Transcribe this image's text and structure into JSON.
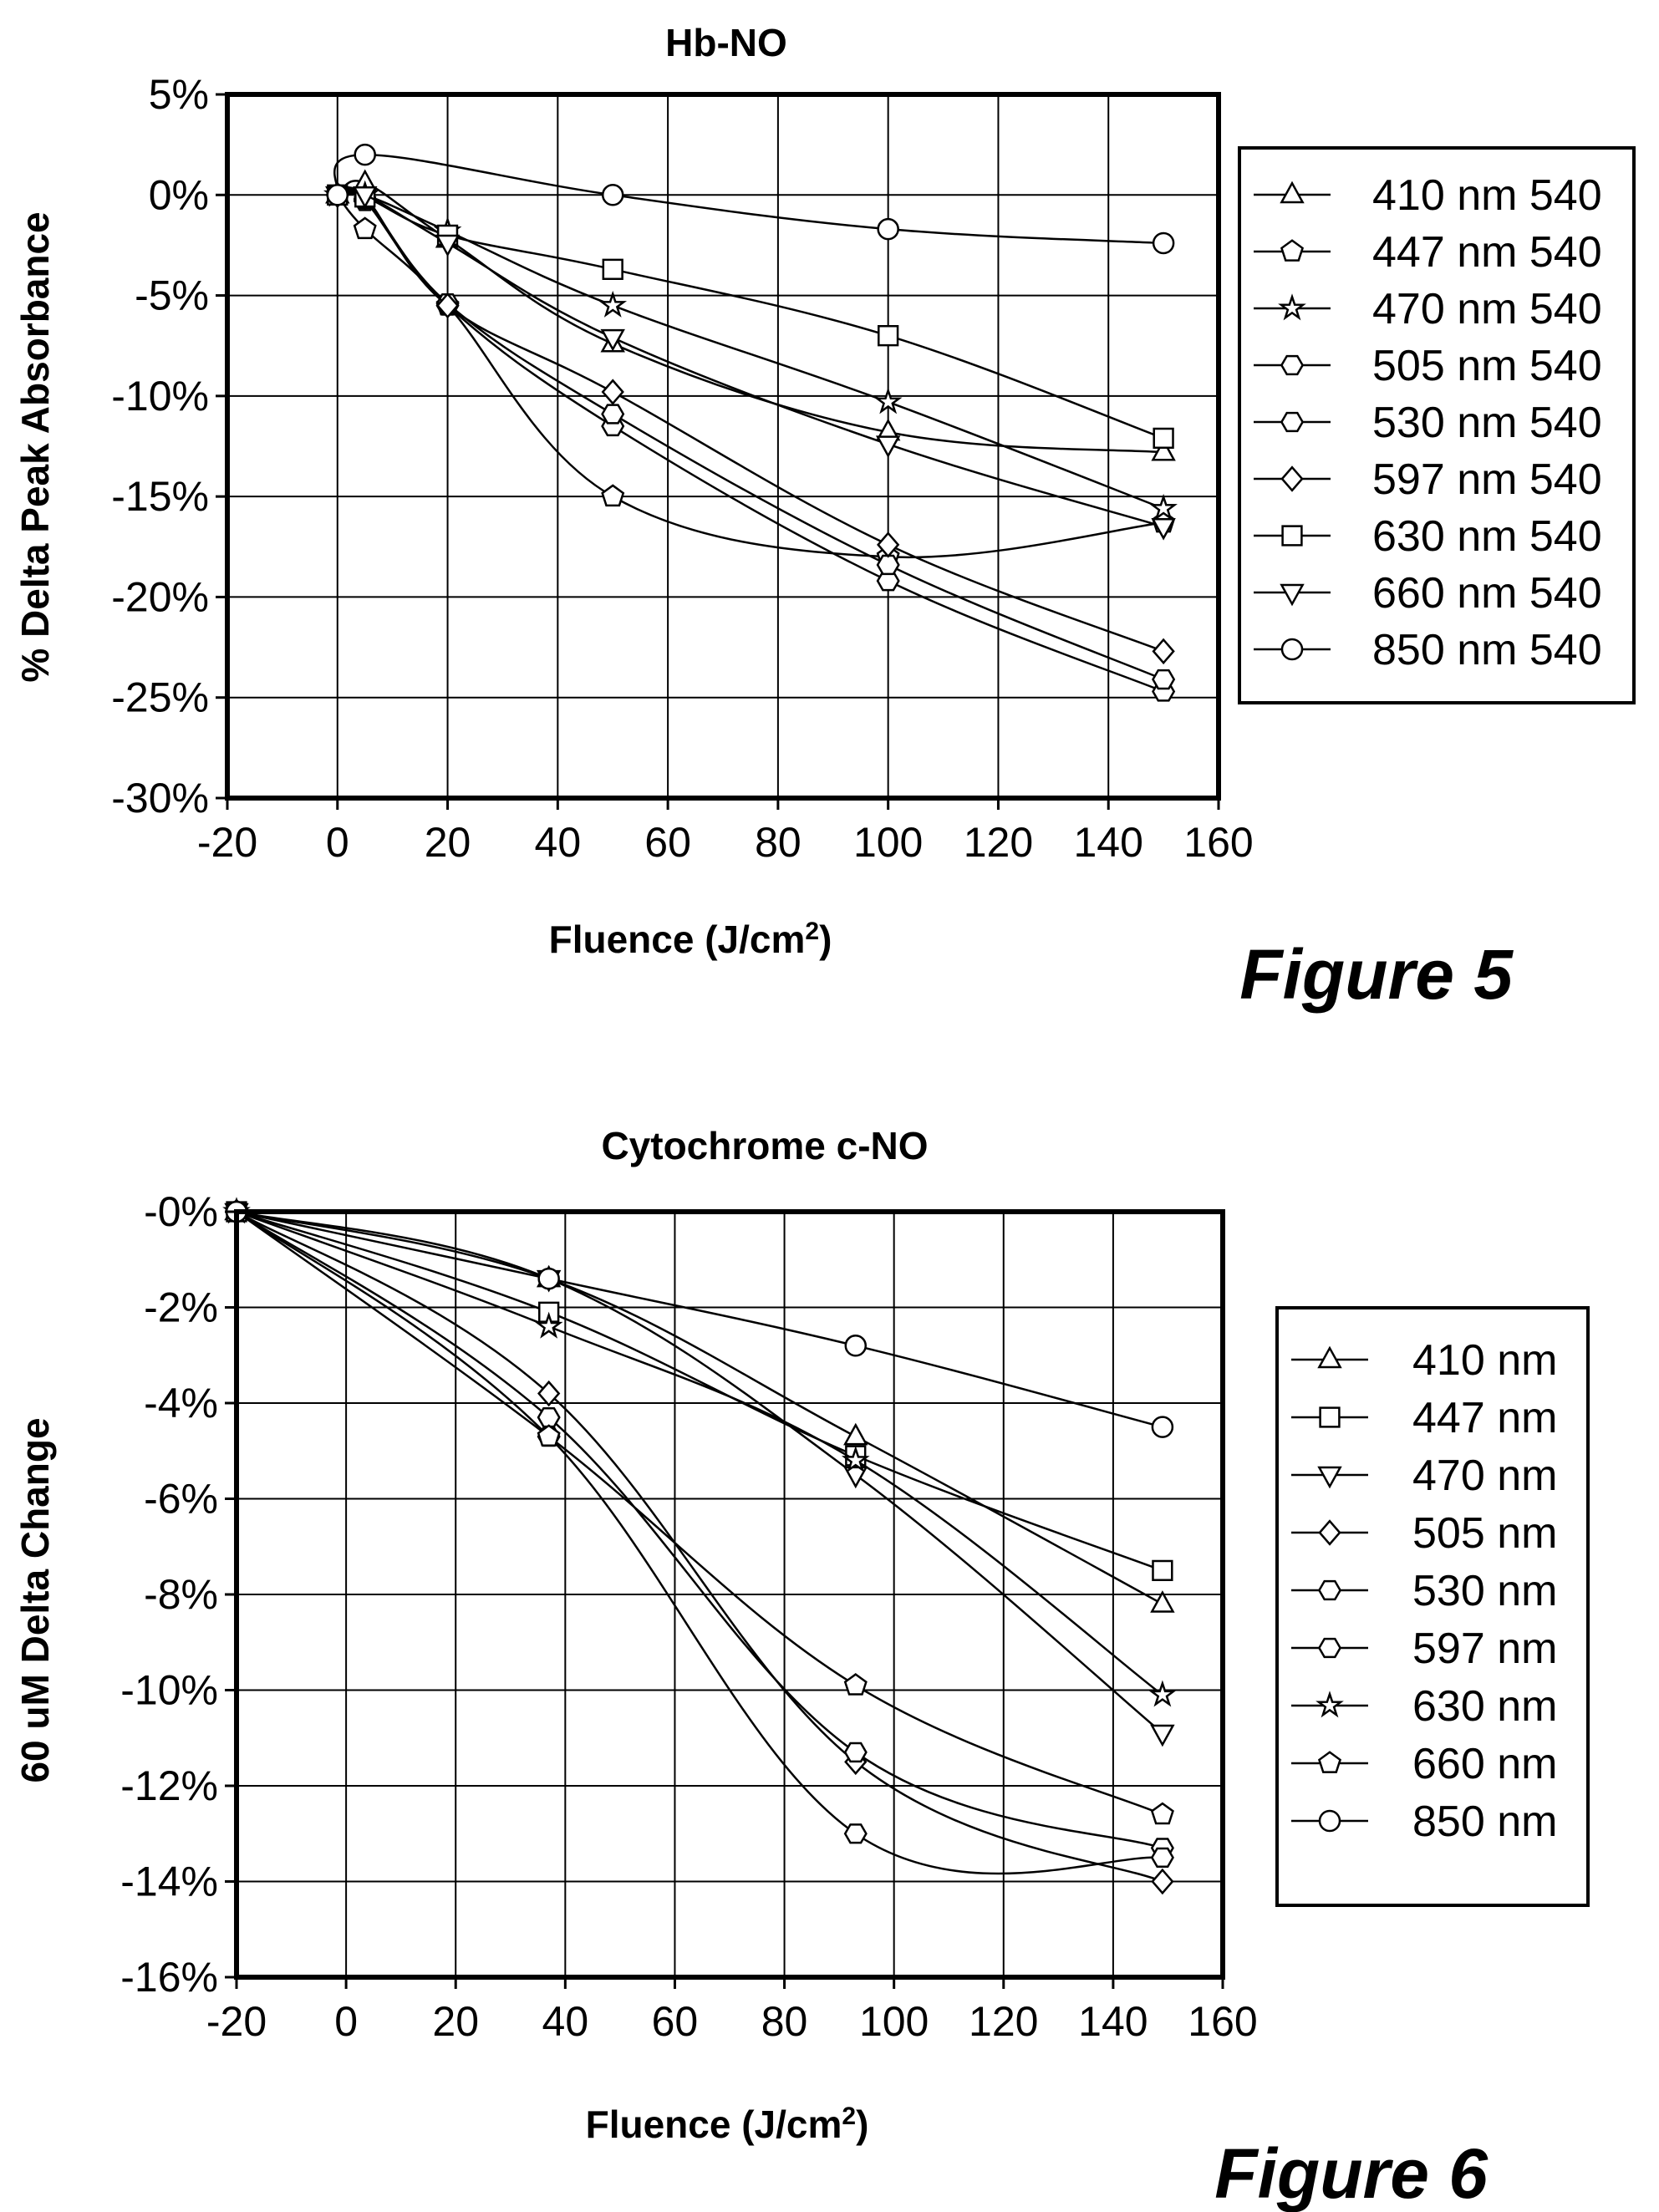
{
  "chart_data": [
    {
      "type": "line",
      "figure_label": "Figure 5",
      "title": "Hb-NO",
      "xlabel": "Fluence (J/cm",
      "xlabel_sup": "2",
      "xlabel_close": ")",
      "ylabel": "% Delta Peak Absorbance",
      "xlim": [
        -20,
        160
      ],
      "ylim": [
        -30,
        5
      ],
      "x_ticks": [
        -20,
        0,
        20,
        40,
        60,
        80,
        100,
        120,
        140,
        160
      ],
      "y_ticks": [
        5,
        0,
        -5,
        -10,
        -15,
        -20,
        -25,
        -30
      ],
      "y_tick_labels": [
        "5%",
        "0%",
        "-5%",
        "-10%",
        "-15%",
        "-20%",
        "-25%",
        "-30%"
      ],
      "grid": true,
      "legend_position": "right",
      "series": [
        {
          "name": "410 nm 540",
          "marker": "triangle-up",
          "x": [
            0,
            5,
            20,
            50,
            100,
            150
          ],
          "y": [
            0,
            0.6,
            -2.2,
            -7.4,
            -11.8,
            -12.8
          ]
        },
        {
          "name": "447 nm 540",
          "marker": "pentagon",
          "x": [
            0,
            5,
            20,
            50,
            100,
            150
          ],
          "y": [
            0,
            -1.7,
            -5.5,
            -15.0,
            -18.0,
            -16.3
          ]
        },
        {
          "name": "470 nm 540",
          "marker": "star",
          "x": [
            0,
            5,
            20,
            50,
            100,
            150
          ],
          "y": [
            0,
            0.0,
            -1.8,
            -5.5,
            -10.3,
            -15.6
          ]
        },
        {
          "name": "505 nm 540",
          "marker": "hexagon",
          "x": [
            0,
            5,
            20,
            50,
            100,
            150
          ],
          "y": [
            0,
            -0.3,
            -5.5,
            -11.5,
            -19.2,
            -24.7
          ]
        },
        {
          "name": "530 nm 540",
          "marker": "hexagon",
          "x": [
            0,
            5,
            20,
            50,
            100,
            150
          ],
          "y": [
            0,
            -0.2,
            -5.4,
            -10.9,
            -18.4,
            -24.1
          ]
        },
        {
          "name": "597 nm 540",
          "marker": "diamond",
          "x": [
            0,
            5,
            20,
            50,
            100,
            150
          ],
          "y": [
            0,
            -0.1,
            -5.5,
            -9.8,
            -17.4,
            -22.7
          ]
        },
        {
          "name": "630 nm 540",
          "marker": "square",
          "x": [
            0,
            5,
            20,
            50,
            100,
            150
          ],
          "y": [
            0,
            -0.1,
            -2.0,
            -3.7,
            -7.0,
            -12.1
          ]
        },
        {
          "name": "660 nm 540",
          "marker": "triangle-down",
          "x": [
            0,
            5,
            20,
            50,
            100,
            150
          ],
          "y": [
            0,
            0.0,
            -2.4,
            -7.1,
            -12.4,
            -16.5
          ]
        },
        {
          "name": "850 nm 540",
          "marker": "circle",
          "x": [
            0,
            5,
            50,
            100,
            150
          ],
          "y": [
            0,
            2.0,
            0.0,
            -1.7,
            -2.4
          ]
        }
      ]
    },
    {
      "type": "line",
      "figure_label": "Figure 6",
      "title": "Cytochrome c-NO",
      "xlabel": "Fluence (J/cm",
      "xlabel_sup": "2",
      "xlabel_close": ")",
      "ylabel": "60 uM Delta Change",
      "xlim": [
        -20,
        160
      ],
      "ylim": [
        -16,
        0
      ],
      "x_ticks": [
        -20,
        0,
        20,
        40,
        60,
        80,
        100,
        120,
        140,
        160
      ],
      "y_ticks": [
        0,
        -2,
        -4,
        -6,
        -8,
        -10,
        -12,
        -14,
        -16
      ],
      "y_tick_labels": [
        "-0%",
        "-2%",
        "-4%",
        "-6%",
        "-8%",
        "-10%",
        "-12%",
        "-14%",
        "-16%"
      ],
      "grid": true,
      "legend_position": "right",
      "series": [
        {
          "name": "410 nm",
          "marker": "triangle-up",
          "x": [
            -20,
            37,
            93,
            149
          ],
          "y": [
            0,
            -1.4,
            -4.7,
            -8.2
          ]
        },
        {
          "name": "447 nm",
          "marker": "square",
          "x": [
            -20,
            37,
            93,
            149
          ],
          "y": [
            0,
            -2.1,
            -5.1,
            -7.5
          ]
        },
        {
          "name": "470 nm",
          "marker": "triangle-down",
          "x": [
            -20,
            37,
            93,
            149
          ],
          "y": [
            0,
            -1.4,
            -5.5,
            -10.9
          ]
        },
        {
          "name": "505 nm",
          "marker": "diamond",
          "x": [
            -20,
            37,
            93,
            149
          ],
          "y": [
            0,
            -3.8,
            -11.5,
            -14.0
          ]
        },
        {
          "name": "530 nm",
          "marker": "hexagon",
          "x": [
            -20,
            37,
            93,
            149
          ],
          "y": [
            0,
            -4.3,
            -11.3,
            -13.3
          ]
        },
        {
          "name": "597 nm",
          "marker": "hexagon",
          "x": [
            -20,
            37,
            93,
            149
          ],
          "y": [
            0,
            -4.7,
            -13.0,
            -13.5
          ]
        },
        {
          "name": "630 nm",
          "marker": "star",
          "x": [
            -20,
            37,
            93,
            149
          ],
          "y": [
            0,
            -2.4,
            -5.2,
            -10.1
          ]
        },
        {
          "name": "660 nm",
          "marker": "pentagon",
          "x": [
            -20,
            37,
            93,
            149
          ],
          "y": [
            0,
            -4.7,
            -9.9,
            -12.6
          ]
        },
        {
          "name": "850 nm",
          "marker": "circle",
          "x": [
            -20,
            37,
            93,
            149
          ],
          "y": [
            0,
            -1.4,
            -2.8,
            -4.5
          ]
        }
      ]
    }
  ]
}
